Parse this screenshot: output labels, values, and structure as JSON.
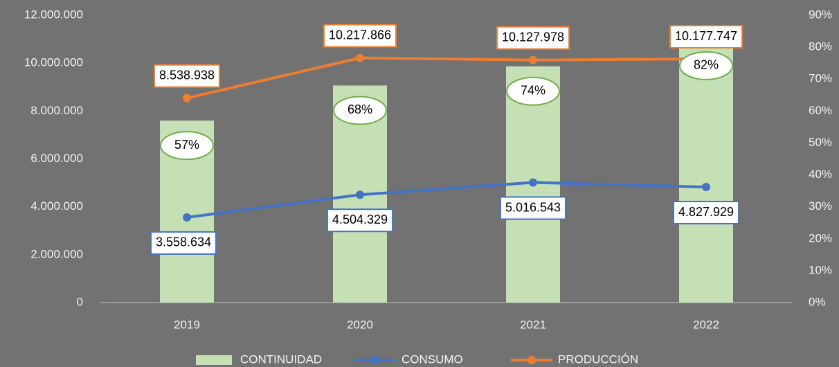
{
  "chart_data": {
    "type": "bar",
    "categories": [
      "2019",
      "2020",
      "2021",
      "2022"
    ],
    "series": [
      {
        "name": "CONTINUIDAD",
        "type": "bar",
        "axis": "y2",
        "color": "#c5e0b4",
        "label_border": "#70ad47",
        "values": [
          57,
          68,
          74,
          82
        ],
        "value_labels": [
          "57%",
          "68%",
          "74%",
          "82%"
        ]
      },
      {
        "name": "CONSUMO",
        "type": "line",
        "color": "#4472c4",
        "values": [
          3558634,
          4504329,
          5016543,
          4827929
        ],
        "value_labels": [
          "3.558.634",
          "4.504.329",
          "5.016.543",
          "4.827.929"
        ]
      },
      {
        "name": "PRODUCCIÓN",
        "type": "line",
        "color": "#ed7d31",
        "values": [
          8538938,
          10217866,
          10127978,
          10177747
        ],
        "value_labels": [
          "8.538.938",
          "10.217.866",
          "10.127.978",
          "10.177.747"
        ]
      }
    ],
    "ylim": [
      0,
      12000000
    ],
    "yticks": [
      0,
      {
        "value": 2000000,
        "label": "2.000.000"
      },
      {
        "value": 4000000,
        "label": "4.000.000"
      },
      {
        "value": 6000000,
        "label": "6.000.000"
      },
      {
        "value": 8000000,
        "label": "8.000.000"
      },
      {
        "value": 10000000,
        "label": "10.000.000"
      },
      {
        "value": 12000000,
        "label": "12.000.000"
      }
    ],
    "y2lim": [
      0,
      90
    ],
    "y2ticks": [
      {
        "value": 0,
        "label": "0%"
      },
      {
        "value": 10,
        "label": "10%"
      },
      {
        "value": 20,
        "label": "20%"
      },
      {
        "value": 30,
        "label": "30%"
      },
      {
        "value": 40,
        "label": "40%"
      },
      {
        "value": 50,
        "label": "50%"
      },
      {
        "value": 60,
        "label": "60%"
      },
      {
        "value": 70,
        "label": "70%"
      },
      {
        "value": 80,
        "label": "80%"
      },
      {
        "value": 90,
        "label": "90%"
      }
    ],
    "legend": "bottom"
  }
}
